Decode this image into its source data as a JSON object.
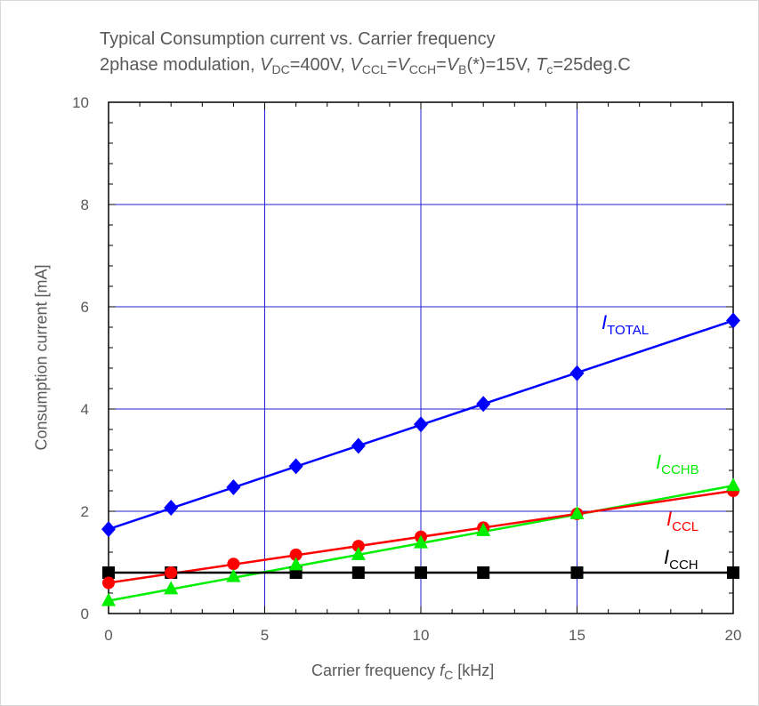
{
  "chart_data": {
    "type": "line",
    "title": "Typical Consumption current vs. Carrier frequency",
    "subtitle_parts": {
      "prefix": "2phase modulation, ",
      "vdc_sym": "V",
      "vdc_sub": "DC",
      "vdc_val": "=400V, ",
      "vccl_sym": "V",
      "vccl_sub": "CCL",
      "eq1": "=",
      "vcch_sym": "V",
      "vcch_sub": "CCH",
      "eq2": "=",
      "vb_sym": "V",
      "vb_sub": "B",
      "vb_val": "(*)=15V, ",
      "tc_sym": "T",
      "tc_sub": "c",
      "tc_val": "=25deg.C"
    },
    "xlabel_prefix": "Carrier frequency ",
    "xlabel_sym": "f",
    "xlabel_sub": "C",
    "xlabel_suffix": " [kHz]",
    "ylabel": "Consumption current [mA]",
    "xlim": [
      0,
      20
    ],
    "ylim": [
      0,
      10
    ],
    "xticks": [
      0,
      5,
      10,
      15,
      20
    ],
    "yticks": [
      0,
      2,
      4,
      6,
      8,
      10
    ],
    "grid": true,
    "series": [
      {
        "name_sym": "I",
        "name_sub": "TOTAL",
        "color": "#0000ff",
        "marker": "diamond",
        "x": [
          0,
          2,
          4,
          6,
          8,
          10,
          12,
          15,
          20
        ],
        "y": [
          1.65,
          2.07,
          2.47,
          2.88,
          3.28,
          3.7,
          4.1,
          4.7,
          5.73
        ],
        "fit": [
          1.65,
          5.73
        ]
      },
      {
        "name_sym": "I",
        "name_sub": "CCHB",
        "color": "#00ee00",
        "marker": "triangle",
        "x": [
          0,
          2,
          4,
          6,
          8,
          10,
          12,
          15,
          20
        ],
        "y": [
          0.25,
          0.48,
          0.72,
          0.95,
          1.15,
          1.38,
          1.62,
          1.95,
          2.5
        ],
        "fit": [
          0.25,
          2.5
        ]
      },
      {
        "name_sym": "I",
        "name_sub": "CCL",
        "color": "#ff0000",
        "marker": "circle",
        "x": [
          0,
          2,
          4,
          6,
          8,
          10,
          12,
          15,
          20
        ],
        "y": [
          0.6,
          0.8,
          0.97,
          1.15,
          1.32,
          1.5,
          1.68,
          1.95,
          2.4
        ],
        "fit": [
          0.6,
          2.4
        ]
      },
      {
        "name_sym": "I",
        "name_sub": "CCH",
        "color": "#000000",
        "marker": "square",
        "x": [
          0,
          2,
          6,
          8,
          10,
          12,
          15,
          20
        ],
        "y": [
          0.8,
          0.8,
          0.8,
          0.8,
          0.8,
          0.8,
          0.8,
          0.8
        ],
        "fit": [
          0.8,
          0.8
        ]
      }
    ]
  }
}
